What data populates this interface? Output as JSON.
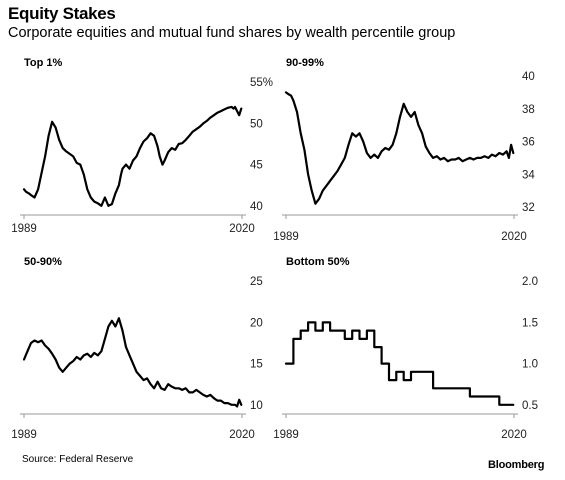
{
  "header": {
    "title": "Equity Stakes",
    "subtitle": "Corporate equities and mutual fund shares by wealth percentile group"
  },
  "footer": {
    "source": "Source: Federal Reserve",
    "brand": "Bloomberg"
  },
  "chart_data": [
    {
      "type": "line",
      "title": "Top 1%",
      "x_tick_labels": [
        "1989",
        "2020"
      ],
      "y_tick_labels": [
        "55%",
        "50",
        "45",
        "40"
      ],
      "y_ticks": [
        55,
        50,
        45,
        40
      ],
      "xlim": [
        1989,
        2020
      ],
      "ylim": [
        39,
        56
      ],
      "grid": false,
      "series": [
        {
          "x": [
            1989,
            1989.3,
            1989.7,
            1990,
            1990.5,
            1991,
            1991.5,
            1992,
            1992.5,
            1993,
            1993.5,
            1994,
            1994.5,
            1995,
            1995.5,
            1996,
            1996.5,
            1997,
            1997.5,
            1998,
            1998.5,
            1999,
            1999.5,
            2000,
            2000.5,
            2001,
            2001.5,
            2002,
            2002.5,
            2002.8,
            2003,
            2003.5,
            2004,
            2004.5,
            2005,
            2005.5,
            2006,
            2006.5,
            2007,
            2007.5,
            2008,
            2008.3,
            2008.7,
            2009,
            2009.5,
            2010,
            2010.5,
            2011,
            2011.5,
            2012,
            2012.5,
            2013,
            2013.5,
            2014,
            2014.5,
            2015,
            2015.5,
            2016,
            2016.5,
            2017,
            2017.5,
            2018,
            2018.5,
            2018.8,
            2019,
            2019.3,
            2019.6,
            2019.9
          ],
          "values": [
            42.0,
            41.7,
            41.5,
            41.3,
            41.0,
            42.0,
            44.0,
            46.0,
            48.5,
            50.2,
            49.5,
            48.0,
            47.0,
            46.6,
            46.3,
            46.0,
            45.2,
            45.0,
            43.8,
            42.0,
            41.0,
            40.5,
            40.3,
            40.0,
            41.0,
            40.0,
            40.2,
            41.5,
            42.5,
            43.8,
            44.5,
            45.0,
            44.5,
            45.5,
            46.0,
            47.0,
            47.8,
            48.2,
            48.8,
            48.5,
            47.2,
            46.0,
            45.0,
            45.5,
            46.5,
            47.0,
            46.8,
            47.5,
            47.6,
            48.0,
            48.5,
            49.0,
            49.3,
            49.6,
            50.0,
            50.3,
            50.7,
            51.0,
            51.3,
            51.5,
            51.7,
            51.9,
            52.0,
            51.8,
            52.0,
            51.5,
            51.0,
            51.8
          ]
        }
      ]
    },
    {
      "type": "line",
      "title": "90-99%",
      "x_tick_labels": [
        "1989",
        "2020"
      ],
      "y_tick_labels": [
        "40",
        "38",
        "36",
        "34",
        "32"
      ],
      "y_ticks": [
        40,
        38,
        36,
        34,
        32
      ],
      "xlim": [
        1989,
        2020
      ],
      "ylim": [
        32,
        40
      ],
      "grid": false,
      "series": [
        {
          "x": [
            1989,
            1989.3,
            1989.7,
            1990,
            1990.5,
            1991,
            1991.5,
            1992,
            1992.5,
            1993,
            1993.5,
            1994,
            1994.5,
            1995,
            1995.5,
            1996,
            1996.5,
            1997,
            1997.5,
            1998,
            1998.5,
            1999,
            1999.5,
            2000,
            2000.5,
            2001,
            2001.5,
            2002,
            2002.5,
            2003,
            2003.5,
            2004,
            2004.5,
            2005,
            2005.5,
            2006,
            2006.5,
            2007,
            2007.5,
            2008,
            2008.5,
            2009,
            2009.5,
            2010,
            2010.5,
            2011,
            2011.5,
            2012,
            2012.5,
            2013,
            2013.5,
            2014,
            2014.5,
            2015,
            2015.5,
            2016,
            2016.5,
            2017,
            2017.5,
            2018,
            2018.5,
            2019,
            2019.3,
            2019.6,
            2019.9
          ],
          "values": [
            39.0,
            38.9,
            38.8,
            38.5,
            37.8,
            36.5,
            35.5,
            34.0,
            33.0,
            32.2,
            32.5,
            33.0,
            33.3,
            33.6,
            33.9,
            34.2,
            34.6,
            35.0,
            35.8,
            36.5,
            36.3,
            36.5,
            36.0,
            35.3,
            35.0,
            35.2,
            35.0,
            35.4,
            35.6,
            35.5,
            35.8,
            36.5,
            37.5,
            38.3,
            37.8,
            37.5,
            37.8,
            37.0,
            36.5,
            35.7,
            35.3,
            35.0,
            35.1,
            34.9,
            35.0,
            34.8,
            34.9,
            34.9,
            35.0,
            34.8,
            34.9,
            35.0,
            34.9,
            35.0,
            35.0,
            35.1,
            35.0,
            35.2,
            35.1,
            35.3,
            35.2,
            35.4,
            35.0,
            35.8,
            35.3
          ]
        }
      ]
    },
    {
      "type": "line",
      "title": "50-90%",
      "x_tick_labels": [
        "1989",
        "2020"
      ],
      "y_tick_labels": [
        "25",
        "20",
        "15",
        "10"
      ],
      "y_ticks": [
        25,
        20,
        15,
        10
      ],
      "xlim": [
        1989,
        2020
      ],
      "ylim": [
        9,
        26
      ],
      "grid": false,
      "series": [
        {
          "x": [
            1989,
            1989.5,
            1990,
            1990.5,
            1991,
            1991.5,
            1992,
            1992.5,
            1993,
            1993.5,
            1994,
            1994.5,
            1995,
            1995.5,
            1996,
            1996.5,
            1997,
            1997.5,
            1998,
            1998.5,
            1999,
            1999.5,
            2000,
            2000.5,
            2001,
            2001.5,
            2002,
            2002.5,
            2003,
            2003.5,
            2004,
            2004.5,
            2005,
            2005.5,
            2006,
            2006.5,
            2007,
            2007.5,
            2008,
            2008.5,
            2009,
            2009.5,
            2010,
            2010.5,
            2011,
            2011.5,
            2012,
            2012.5,
            2013,
            2013.5,
            2014,
            2014.5,
            2015,
            2015.5,
            2016,
            2016.5,
            2017,
            2017.5,
            2018,
            2018.5,
            2019,
            2019.3,
            2019.6,
            2019.9
          ],
          "values": [
            15.5,
            16.5,
            17.5,
            17.8,
            17.6,
            17.8,
            17.2,
            16.8,
            16.2,
            15.5,
            14.5,
            14.0,
            14.5,
            15.0,
            15.3,
            15.8,
            15.5,
            16.0,
            16.2,
            15.8,
            16.3,
            16.0,
            16.5,
            18.0,
            19.5,
            20.2,
            19.5,
            20.5,
            19.0,
            17.0,
            16.0,
            15.0,
            14.0,
            13.5,
            13.0,
            13.2,
            12.5,
            12.0,
            12.8,
            12.0,
            11.8,
            12.5,
            12.2,
            12.0,
            12.0,
            11.8,
            12.0,
            11.5,
            11.5,
            11.8,
            11.5,
            11.2,
            11.0,
            11.2,
            10.8,
            10.5,
            10.5,
            10.2,
            10.2,
            10.0,
            10.0,
            9.8,
            10.6,
            10.0
          ]
        }
      ]
    },
    {
      "type": "line",
      "title": "Bottom 50%",
      "x_tick_labels": [
        "1989",
        "2020"
      ],
      "y_tick_labels": [
        "2.0",
        "1.5",
        "1.0",
        "0.5"
      ],
      "y_ticks": [
        2.0,
        1.5,
        1.0,
        0.5
      ],
      "xlim": [
        1989,
        2020
      ],
      "ylim": [
        0.4,
        2.1
      ],
      "grid": false,
      "series": [
        {
          "step": true,
          "x": [
            1989,
            1990,
            1991,
            1992,
            1993,
            1994,
            1995,
            1996,
            1997,
            1998,
            1999,
            2000,
            2001,
            2002,
            2003,
            2004,
            2005,
            2006,
            2007,
            2008,
            2009,
            2010,
            2011,
            2012,
            2013,
            2014,
            2015,
            2016,
            2017,
            2018,
            2019,
            2019.9
          ],
          "values": [
            1.0,
            1.3,
            1.4,
            1.5,
            1.4,
            1.5,
            1.4,
            1.4,
            1.3,
            1.4,
            1.3,
            1.4,
            1.2,
            1.0,
            0.8,
            0.9,
            0.8,
            0.9,
            0.9,
            0.9,
            0.7,
            0.7,
            0.7,
            0.7,
            0.7,
            0.6,
            0.6,
            0.6,
            0.6,
            0.5,
            0.5,
            0.5
          ]
        }
      ]
    }
  ]
}
